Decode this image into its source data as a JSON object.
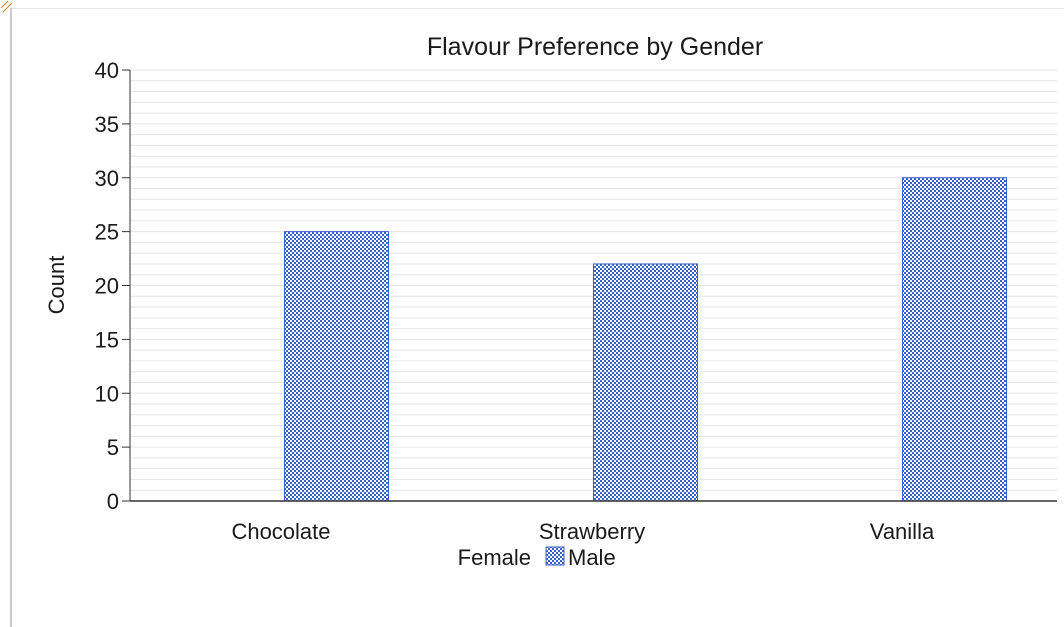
{
  "chart_data": {
    "type": "bar",
    "title": "Flavour Preference by Gender",
    "xlabel": "",
    "ylabel": "Count",
    "categories": [
      "Chocolate",
      "Strawberry",
      "Vanilla"
    ],
    "series": [
      {
        "name": "Female",
        "values": [
          0,
          0,
          0
        ],
        "color": ""
      },
      {
        "name": "Male",
        "values": [
          25,
          22,
          30
        ],
        "color": "#3a5fc8"
      }
    ],
    "ylim": [
      0,
      40
    ],
    "yticks": [
      "0",
      "5",
      "10",
      "15",
      "20",
      "25",
      "30",
      "35",
      "40"
    ],
    "grid": true,
    "legend_position": "bottom"
  },
  "colors": {
    "male_bar": "#3a5fc8",
    "grid": "#e6e6e6",
    "axis": "#333333"
  }
}
